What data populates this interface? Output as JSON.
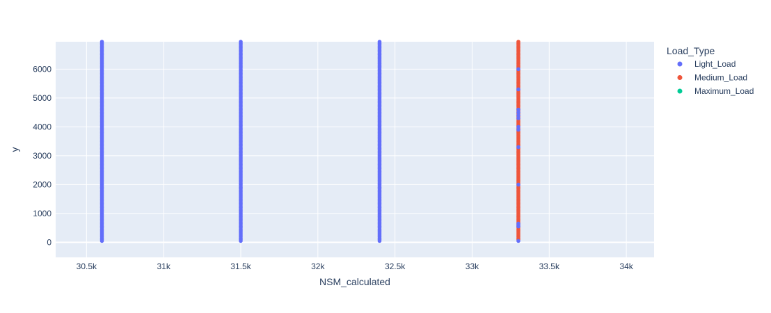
{
  "chart_data": {
    "type": "scatter",
    "xlabel": "NSM_calculated",
    "ylabel": "y",
    "xlim": [
      30300,
      34180
    ],
    "ylim": [
      -520,
      6950
    ],
    "x_ticks": [
      30500,
      31000,
      31500,
      32000,
      32500,
      33000,
      33500,
      34000
    ],
    "x_tick_labels": [
      "30.5k",
      "31k",
      "31.5k",
      "32k",
      "32.5k",
      "33k",
      "33.5k",
      "34k"
    ],
    "y_ticks": [
      0,
      1000,
      2000,
      3000,
      4000,
      5000,
      6000
    ],
    "y_tick_labels": [
      "0",
      "1000",
      "2000",
      "3000",
      "4000",
      "5000",
      "6000"
    ],
    "grid": true,
    "plot_background": "#e5ecf6",
    "legend": {
      "title": "Load_Type",
      "placement": "right",
      "entries": [
        {
          "name": "Light_Load",
          "color": "#636efa"
        },
        {
          "name": "Medium_Load",
          "color": "#ef553b"
        },
        {
          "name": "Maximum_Load",
          "color": "#00cc96"
        }
      ]
    },
    "series": [
      {
        "name": "Light_Load",
        "color": "#636efa",
        "columns": [
          {
            "x": 30600,
            "y_range": [
              50,
              6950
            ]
          },
          {
            "x": 31500,
            "y_range": [
              50,
              6950
            ]
          },
          {
            "x": 32400,
            "y_range": [
              50,
              6950
            ]
          }
        ],
        "points": [
          {
            "x": 33300,
            "y": 50
          },
          {
            "x": 33300,
            "y": 550
          },
          {
            "x": 33300,
            "y": 600
          },
          {
            "x": 33300,
            "y": 650
          },
          {
            "x": 33300,
            "y": 2000
          },
          {
            "x": 33300,
            "y": 3300
          },
          {
            "x": 33300,
            "y": 3900
          },
          {
            "x": 33300,
            "y": 4000
          },
          {
            "x": 33300,
            "y": 4300
          },
          {
            "x": 33300,
            "y": 4400
          },
          {
            "x": 33300,
            "y": 4500
          },
          {
            "x": 33300,
            "y": 4600
          },
          {
            "x": 33300,
            "y": 5300
          },
          {
            "x": 33300,
            "y": 6000
          }
        ]
      },
      {
        "name": "Medium_Load",
        "color": "#ef553b",
        "columns": [
          {
            "x": 33300,
            "y_range": [
              100,
              6950
            ]
          }
        ]
      },
      {
        "name": "Maximum_Load",
        "color": "#00cc96",
        "columns": []
      }
    ]
  }
}
